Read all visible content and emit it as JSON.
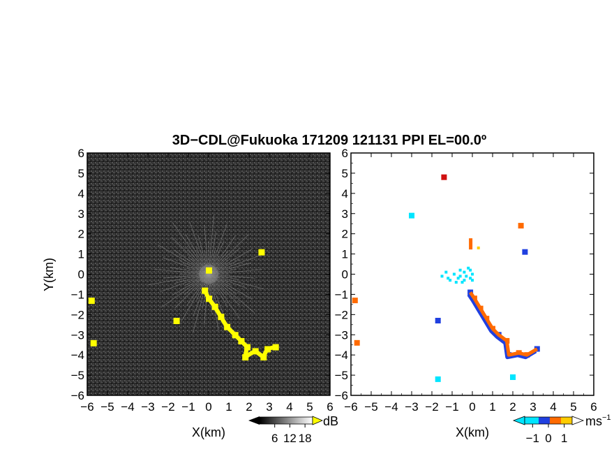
{
  "title": "3D−CDL@Fukuoka 171209 121131 PPI EL=00.0º",
  "chart_data": [
    {
      "type": "heatmap",
      "panel": "reflectivity",
      "xlabel": "X(km)",
      "ylabel": "Y(km)",
      "xlim": [
        -6,
        6
      ],
      "ylim": [
        -6,
        6
      ],
      "xticks": [
        "−6",
        "−5",
        "−4",
        "−3",
        "−2",
        "−1",
        "0",
        "1",
        "2",
        "3",
        "4",
        "5",
        "6"
      ],
      "yticks": [
        "6",
        "5",
        "4",
        "3",
        "2",
        "1",
        "0",
        "−1",
        "−2",
        "−3",
        "−4",
        "−5",
        "−6"
      ],
      "background": "dark grey noise with bright radial streaks near origin",
      "echo_color": "#ffff00",
      "echoes": [
        {
          "x": -0.2,
          "y": -0.8
        },
        {
          "x": 0.0,
          "y": -1.2
        },
        {
          "x": 0.3,
          "y": -1.6
        },
        {
          "x": 0.6,
          "y": -2.1
        },
        {
          "x": 0.9,
          "y": -2.6
        },
        {
          "x": 1.3,
          "y": -3.0
        },
        {
          "x": 1.6,
          "y": -3.3
        },
        {
          "x": 1.9,
          "y": -3.6
        },
        {
          "x": 1.8,
          "y": -4.1
        },
        {
          "x": 2.3,
          "y": -3.8
        },
        {
          "x": 2.7,
          "y": -4.1
        },
        {
          "x": 2.9,
          "y": -3.7
        },
        {
          "x": 3.3,
          "y": -3.6
        },
        {
          "x": -1.6,
          "y": -2.3
        },
        {
          "x": 2.6,
          "y": 1.1
        },
        {
          "x": -5.8,
          "y": -1.3
        },
        {
          "x": -5.7,
          "y": -3.4
        },
        {
          "x": 0.0,
          "y": 0.2
        }
      ],
      "colorbar": {
        "unit": "dB",
        "ticks": [
          "6",
          "12",
          "18"
        ],
        "range": [
          0,
          21
        ]
      }
    },
    {
      "type": "heatmap",
      "panel": "doppler velocity",
      "xlabel": "X(km)",
      "xlim": [
        -6,
        6
      ],
      "ylim": [
        -6,
        6
      ],
      "xticks": [
        "−6",
        "−5",
        "−4",
        "−3",
        "−2",
        "−1",
        "0",
        "1",
        "2",
        "3",
        "4",
        "5",
        "6"
      ],
      "yticks": [
        "6",
        "5",
        "4",
        "3",
        "2",
        "1",
        "0",
        "−1",
        "−2",
        "−3",
        "−4",
        "−5",
        "−6"
      ],
      "colors": {
        "negative": "#2040e0",
        "near_zero_neg": "#00e5ff",
        "positive": "#ff6a00",
        "strong_positive": "#d01010",
        "weak_positive": "#ffcc00"
      },
      "echoes": [
        {
          "x": -0.1,
          "y": -0.9,
          "v": -1
        },
        {
          "x": 0.1,
          "y": -1.2,
          "v": 1
        },
        {
          "x": 0.4,
          "y": -1.7,
          "v": 1
        },
        {
          "x": 0.7,
          "y": -2.2,
          "v": 1
        },
        {
          "x": 1.0,
          "y": -2.7,
          "v": 1
        },
        {
          "x": 1.3,
          "y": -3.0,
          "v": -1
        },
        {
          "x": 1.7,
          "y": -3.3,
          "v": 1
        },
        {
          "x": 1.8,
          "y": -4.0,
          "v": -1
        },
        {
          "x": 2.3,
          "y": -3.9,
          "v": 1
        },
        {
          "x": 2.7,
          "y": -4.0,
          "v": 1
        },
        {
          "x": 3.2,
          "y": -3.7,
          "v": -1
        },
        {
          "x": -1.7,
          "y": -2.3,
          "v": -1
        },
        {
          "x": -1.4,
          "y": 4.8,
          "v": 1.5
        },
        {
          "x": -3.0,
          "y": 2.9,
          "v": -0.8
        },
        {
          "x": 2.4,
          "y": 2.4,
          "v": 1
        },
        {
          "x": 2.6,
          "y": 1.1,
          "v": -1
        },
        {
          "x": -1.7,
          "y": -5.2,
          "v": -0.8
        },
        {
          "x": 2.0,
          "y": -5.1,
          "v": -0.8
        },
        {
          "x": -5.8,
          "y": -1.3,
          "v": 1
        },
        {
          "x": -5.7,
          "y": -3.4,
          "v": 1
        }
      ],
      "near_origin_scatter": "cyan points spread west of origin from x=-1.6 to 0, y=-0.5 to 0.3",
      "colorbar": {
        "unit": "ms",
        "unit_exp": "−1",
        "ticks": [
          "−1",
          "0",
          "1"
        ],
        "range": [
          -1.5,
          1.5
        ]
      }
    }
  ]
}
